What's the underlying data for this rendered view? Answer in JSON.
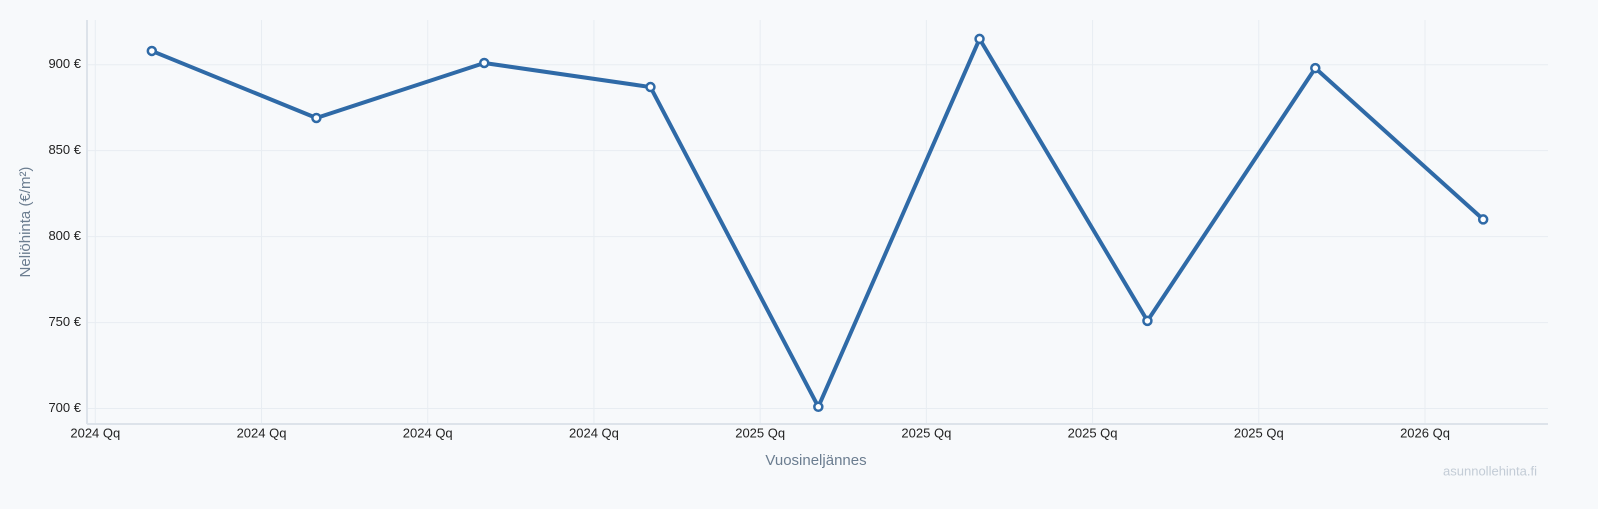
{
  "chart_data": {
    "type": "line",
    "x_label": "Vuosineljännes",
    "y_label": "Neliöhinta (€/m²)",
    "watermark": "asunnollehinta.fi",
    "x": [
      0.34,
      1.33,
      2.34,
      3.34,
      4.35,
      5.32,
      6.33,
      7.34,
      8.35
    ],
    "series": [
      {
        "color": "#2f6aa7",
        "values": [
          908,
          869,
          901,
          887,
          701,
          915,
          751,
          898,
          810
        ]
      }
    ],
    "xlim": [
      -0.05,
      8.74
    ],
    "xticks": [
      {
        "value": 0,
        "label": "2024 Qq"
      },
      {
        "value": 1,
        "label": "2024 Qq"
      },
      {
        "value": 2,
        "label": "2024 Qq"
      },
      {
        "value": 3,
        "label": "2024 Qq"
      },
      {
        "value": 4,
        "label": "2025 Qq"
      },
      {
        "value": 5,
        "label": "2025 Qq"
      },
      {
        "value": 6,
        "label": "2025 Qq"
      },
      {
        "value": 7,
        "label": "2025 Qq"
      },
      {
        "value": 8,
        "label": "2026 Qq"
      }
    ],
    "ylim": [
      691,
      926
    ],
    "yticks": [
      {
        "value": 700,
        "label": "700 €"
      },
      {
        "value": 750,
        "label": "750 €"
      },
      {
        "value": 800,
        "label": "800 €"
      },
      {
        "value": 850,
        "label": "850 €"
      },
      {
        "value": 900,
        "label": "900 €"
      }
    ],
    "grid": true
  }
}
